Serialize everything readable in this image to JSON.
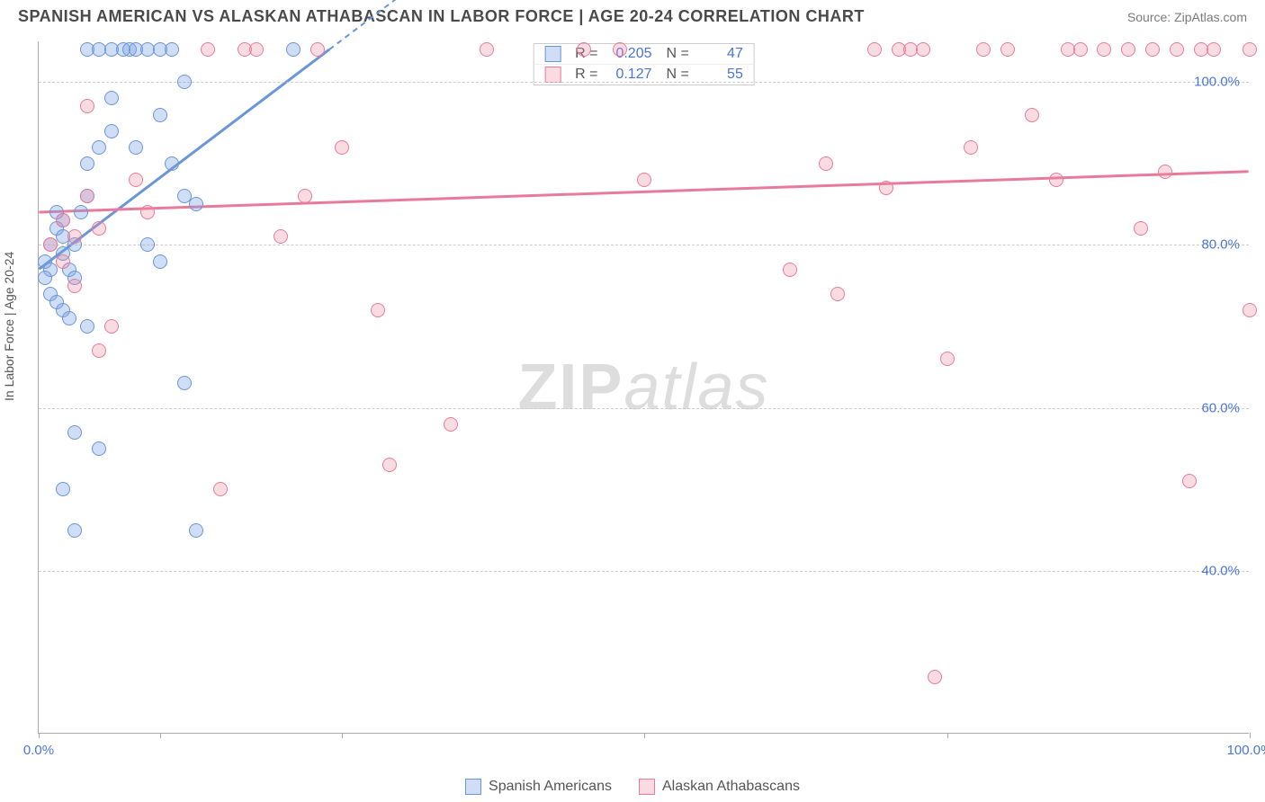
{
  "title": "SPANISH AMERICAN VS ALASKAN ATHABASCAN IN LABOR FORCE | AGE 20-24 CORRELATION CHART",
  "source": "Source: ZipAtlas.com",
  "ylabel": "In Labor Force | Age 20-24",
  "watermark_a": "ZIP",
  "watermark_b": "atlas",
  "chart": {
    "type": "scatter",
    "xlim": [
      0,
      100
    ],
    "ylim": [
      20,
      105
    ],
    "ytick_values": [
      40,
      60,
      80,
      100
    ],
    "ytick_labels": [
      "40.0%",
      "60.0%",
      "80.0%",
      "100.0%"
    ],
    "xtick_major": [
      0,
      100
    ],
    "xtick_major_labels": [
      "0.0%",
      "100.0%"
    ],
    "xtick_minor": [
      10,
      25,
      50,
      75
    ],
    "grid_color": "#cccccc",
    "axis_color": "#aaaaaa",
    "background": "#ffffff",
    "point_radius": 8,
    "series": [
      {
        "name": "Spanish Americans",
        "color_fill": "rgba(120,160,225,0.35)",
        "color_stroke": "#6a95d8",
        "r_value": "0.205",
        "n_value": "47",
        "trend": {
          "x1": 0,
          "y1": 77,
          "x2": 24,
          "y2": 104,
          "dash_x2": 32,
          "dash_y2": 113
        },
        "points": [
          [
            0.5,
            78
          ],
          [
            1,
            80
          ],
          [
            1,
            77
          ],
          [
            1.5,
            82
          ],
          [
            1.5,
            84
          ],
          [
            2,
            83
          ],
          [
            2,
            81
          ],
          [
            2,
            79
          ],
          [
            2.5,
            77
          ],
          [
            0.5,
            76
          ],
          [
            1,
            74
          ],
          [
            1.5,
            73
          ],
          [
            2,
            72
          ],
          [
            2.5,
            71
          ],
          [
            3,
            76
          ],
          [
            3,
            80
          ],
          [
            3.5,
            84
          ],
          [
            4,
            86
          ],
          [
            4,
            104
          ],
          [
            5,
            104
          ],
          [
            6,
            104
          ],
          [
            6,
            98
          ],
          [
            7,
            104
          ],
          [
            7.5,
            104
          ],
          [
            8,
            104
          ],
          [
            9,
            104
          ],
          [
            10,
            104
          ],
          [
            10,
            96
          ],
          [
            11,
            104
          ],
          [
            11,
            90
          ],
          [
            12,
            100
          ],
          [
            12,
            86
          ],
          [
            13,
            85
          ],
          [
            12,
            63
          ],
          [
            4,
            90
          ],
          [
            5,
            92
          ],
          [
            6,
            94
          ],
          [
            3,
            57
          ],
          [
            2,
            50
          ],
          [
            5,
            55
          ],
          [
            3,
            45
          ],
          [
            13,
            45
          ],
          [
            21,
            104
          ],
          [
            9,
            80
          ],
          [
            10,
            78
          ],
          [
            8,
            92
          ],
          [
            4,
            70
          ]
        ]
      },
      {
        "name": "Alaskan Athabascans",
        "color_fill": "rgba(235,135,160,0.3)",
        "color_stroke": "#e87b9b",
        "r_value": "0.127",
        "n_value": "55",
        "trend": {
          "x1": 0,
          "y1": 84,
          "x2": 100,
          "y2": 89
        },
        "points": [
          [
            2,
            83
          ],
          [
            3,
            81
          ],
          [
            4,
            86
          ],
          [
            5,
            67
          ],
          [
            6,
            70
          ],
          [
            8,
            88
          ],
          [
            9,
            84
          ],
          [
            14,
            104
          ],
          [
            17,
            104
          ],
          [
            18,
            104
          ],
          [
            20,
            81
          ],
          [
            22,
            86
          ],
          [
            23,
            104
          ],
          [
            25,
            92
          ],
          [
            28,
            72
          ],
          [
            29,
            53
          ],
          [
            34,
            58
          ],
          [
            37,
            104
          ],
          [
            45,
            104
          ],
          [
            48,
            104
          ],
          [
            62,
            77
          ],
          [
            66,
            74
          ],
          [
            69,
            104
          ],
          [
            71,
            104
          ],
          [
            72,
            104
          ],
          [
            73,
            104
          ],
          [
            75,
            66
          ],
          [
            77,
            92
          ],
          [
            78,
            104
          ],
          [
            80,
            104
          ],
          [
            82,
            96
          ],
          [
            84,
            88
          ],
          [
            85,
            104
          ],
          [
            86,
            104
          ],
          [
            88,
            104
          ],
          [
            90,
            104
          ],
          [
            91,
            82
          ],
          [
            92,
            104
          ],
          [
            93,
            89
          ],
          [
            94,
            104
          ],
          [
            95,
            51
          ],
          [
            96,
            104
          ],
          [
            74,
            27
          ],
          [
            100,
            104
          ],
          [
            100,
            72
          ],
          [
            97,
            104
          ],
          [
            15,
            50
          ],
          [
            4,
            97
          ],
          [
            2,
            78
          ],
          [
            1,
            80
          ],
          [
            3,
            75
          ],
          [
            5,
            82
          ],
          [
            50,
            88
          ],
          [
            65,
            90
          ],
          [
            70,
            87
          ]
        ]
      }
    ]
  },
  "legend": {
    "series1": "Spanish Americans",
    "series2": "Alaskan Athabascans"
  }
}
